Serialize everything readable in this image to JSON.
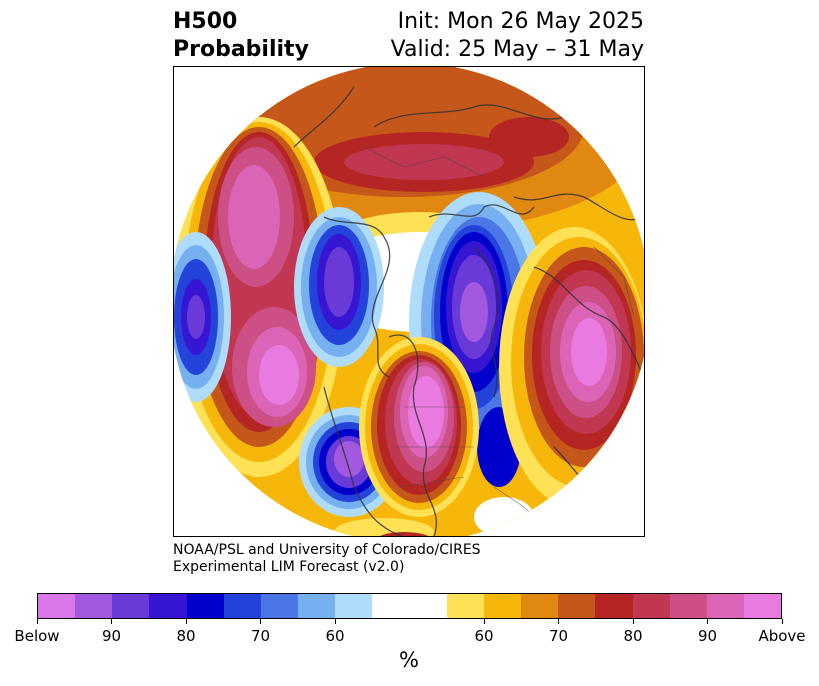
{
  "header": {
    "title_line1": "H500",
    "title_line2": "Probability",
    "init": "Init: Mon 26 May 2025",
    "valid": "Valid: 25 May – 31 May"
  },
  "credit": {
    "line1": "NOAA/PSL and University of Colorado/CIRES",
    "line2": "Experimental LIM Forecast (v2.0)"
  },
  "colorbar": {
    "colors": [
      "#d977e9",
      "#a259df",
      "#6a3ad8",
      "#3616d3",
      "#0000cd",
      "#2343da",
      "#4c75e6",
      "#76b0f1",
      "#afdcfb",
      "#ffffff",
      "#ffffff",
      "#ffe155",
      "#f6b70a",
      "#e08810",
      "#c6571a",
      "#b42524",
      "#c13650",
      "#cc4f85",
      "#dc64b6",
      "#e97ae0"
    ],
    "tick_labels": [
      "Below",
      "90",
      "80",
      "70",
      "60",
      "60",
      "70",
      "80",
      "90",
      "Above"
    ],
    "unit": "%"
  }
}
